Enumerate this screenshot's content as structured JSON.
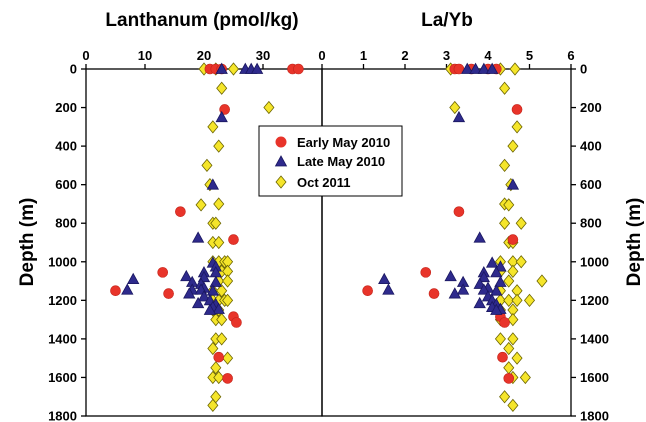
{
  "chart_data": [
    {
      "type": "scatter",
      "title": "Lanthanum (pmol/kg)",
      "xlim": [
        0,
        40
      ],
      "x_ticks": [
        "0",
        "10",
        "20",
        "30"
      ],
      "y_ticks": [
        "0",
        "200",
        "400",
        "600",
        "800",
        "1000",
        "1200",
        "1400",
        "1600",
        "1800"
      ],
      "ylim": [
        0,
        1800
      ],
      "ylabel": "Depth (m)",
      "series": [
        {
          "name": "Early May 2010",
          "marker": "circle",
          "color": "#e8342a",
          "points": [
            [
              21,
              0
            ],
            [
              22,
              0
            ],
            [
              23,
              0
            ],
            [
              35,
              0
            ],
            [
              36,
              0
            ],
            [
              23.5,
              210
            ],
            [
              16,
              740
            ],
            [
              25,
              885
            ],
            [
              13,
              1055
            ],
            [
              5,
              1150
            ],
            [
              14,
              1165
            ],
            [
              25,
              1285
            ],
            [
              25.5,
              1315
            ],
            [
              22.5,
              1495
            ],
            [
              24,
              1605
            ]
          ]
        },
        {
          "name": "Late May 2010",
          "marker": "triangle",
          "color": "#2e2a8c",
          "points": [
            [
              23,
              0
            ],
            [
              27,
              0
            ],
            [
              28,
              0
            ],
            [
              29,
              0
            ],
            [
              23,
              250
            ],
            [
              21.5,
              600
            ],
            [
              19,
              875
            ],
            [
              21.5,
              1005
            ],
            [
              22,
              1025
            ],
            [
              20,
              1055
            ],
            [
              22,
              1055
            ],
            [
              17,
              1075
            ],
            [
              20,
              1080
            ],
            [
              8,
              1090
            ],
            [
              18,
              1105
            ],
            [
              22,
              1105
            ],
            [
              19.5,
              1115
            ],
            [
              20,
              1135
            ],
            [
              7,
              1145
            ],
            [
              18,
              1145
            ],
            [
              19.5,
              1145
            ],
            [
              21.5,
              1150
            ],
            [
              17.5,
              1165
            ],
            [
              20,
              1180
            ],
            [
              21,
              1200
            ],
            [
              19,
              1215
            ],
            [
              22,
              1220
            ],
            [
              21.5,
              1235
            ],
            [
              22.5,
              1245
            ],
            [
              21,
              1250
            ]
          ]
        },
        {
          "name": "Oct 2011",
          "marker": "diamond",
          "color": "#f5e52a",
          "points": [
            [
              20,
              0
            ],
            [
              22,
              0
            ],
            [
              25,
              0
            ],
            [
              23,
              100
            ],
            [
              31,
              200
            ],
            [
              21.5,
              300
            ],
            [
              22.5,
              400
            ],
            [
              20.5,
              500
            ],
            [
              21,
              600
            ],
            [
              22.5,
              700
            ],
            [
              19.5,
              705
            ],
            [
              21.5,
              800
            ],
            [
              22,
              800
            ],
            [
              21.5,
              900
            ],
            [
              22.5,
              900
            ],
            [
              21.5,
              1000
            ],
            [
              22.5,
              1000
            ],
            [
              23.5,
              1000
            ],
            [
              24,
              1000
            ],
            [
              23,
              1050
            ],
            [
              24,
              1050
            ],
            [
              22.5,
              1100
            ],
            [
              24,
              1100
            ],
            [
              21.5,
              1150
            ],
            [
              23,
              1150
            ],
            [
              21.5,
              1200
            ],
            [
              22.5,
              1200
            ],
            [
              23.5,
              1200
            ],
            [
              24,
              1200
            ],
            [
              21.5,
              1250
            ],
            [
              22.5,
              1250
            ],
            [
              22,
              1300
            ],
            [
              23,
              1300
            ],
            [
              22,
              1400
            ],
            [
              23,
              1400
            ],
            [
              21.5,
              1450
            ],
            [
              24,
              1500
            ],
            [
              22,
              1550
            ],
            [
              21.5,
              1600
            ],
            [
              22.5,
              1600
            ],
            [
              22,
              1700
            ],
            [
              21.5,
              1745
            ]
          ]
        }
      ],
      "legend": {
        "placement": "center",
        "entries": [
          "Early May 2010",
          "Late May 2010",
          "Oct 2011"
        ]
      }
    },
    {
      "type": "scatter",
      "title": "La/Yb",
      "xlim": [
        0,
        6
      ],
      "x_ticks": [
        "0",
        "1",
        "2",
        "3",
        "4",
        "5",
        "6"
      ],
      "y_ticks": [
        "0",
        "200",
        "400",
        "600",
        "800",
        "1000",
        "1200",
        "1400",
        "1600",
        "1800"
      ],
      "ylim": [
        0,
        1800
      ],
      "ylabel": "Depth (m)",
      "series": [
        {
          "name": "Early May 2010",
          "marker": "circle",
          "color": "#e8342a",
          "points": [
            [
              3.2,
              0
            ],
            [
              3.3,
              0
            ],
            [
              3.6,
              0
            ],
            [
              4.0,
              0
            ],
            [
              4.2,
              0
            ],
            [
              4.7,
              210
            ],
            [
              3.3,
              740
            ],
            [
              4.6,
              885
            ],
            [
              2.5,
              1055
            ],
            [
              1.1,
              1150
            ],
            [
              2.7,
              1165
            ],
            [
              4.3,
              1285
            ],
            [
              4.4,
              1315
            ],
            [
              4.35,
              1495
            ],
            [
              4.5,
              1605
            ]
          ]
        },
        {
          "name": "Late May 2010",
          "marker": "triangle",
          "color": "#2e2a8c",
          "points": [
            [
              3.5,
              0
            ],
            [
              3.7,
              0
            ],
            [
              3.9,
              0
            ],
            [
              4.1,
              0
            ],
            [
              3.3,
              250
            ],
            [
              4.6,
              600
            ],
            [
              3.8,
              875
            ],
            [
              4.1,
              1005
            ],
            [
              4.3,
              1025
            ],
            [
              3.9,
              1055
            ],
            [
              4.2,
              1055
            ],
            [
              3.1,
              1075
            ],
            [
              3.9,
              1080
            ],
            [
              1.5,
              1090
            ],
            [
              3.4,
              1105
            ],
            [
              4.3,
              1105
            ],
            [
              3.8,
              1115
            ],
            [
              4.0,
              1135
            ],
            [
              1.6,
              1145
            ],
            [
              3.4,
              1145
            ],
            [
              3.9,
              1145
            ],
            [
              4.2,
              1150
            ],
            [
              3.2,
              1165
            ],
            [
              4.0,
              1180
            ],
            [
              4.1,
              1200
            ],
            [
              3.8,
              1215
            ],
            [
              4.2,
              1220
            ],
            [
              4.1,
              1235
            ],
            [
              4.3,
              1245
            ],
            [
              4.2,
              1250
            ]
          ]
        },
        {
          "name": "Oct 2011",
          "marker": "diamond",
          "color": "#f5e52a",
          "points": [
            [
              3.1,
              0
            ],
            [
              4.3,
              0
            ],
            [
              4.65,
              0
            ],
            [
              4.4,
              100
            ],
            [
              3.2,
              200
            ],
            [
              4.7,
              300
            ],
            [
              4.6,
              400
            ],
            [
              4.4,
              500
            ],
            [
              4.55,
              600
            ],
            [
              4.4,
              700
            ],
            [
              4.5,
              705
            ],
            [
              4.8,
              800
            ],
            [
              4.4,
              800
            ],
            [
              4.5,
              900
            ],
            [
              4.6,
              900
            ],
            [
              4.3,
              1000
            ],
            [
              4.6,
              1000
            ],
            [
              4.8,
              1000
            ],
            [
              4.3,
              1050
            ],
            [
              4.6,
              1050
            ],
            [
              4.5,
              1100
            ],
            [
              5.3,
              1100
            ],
            [
              4.3,
              1150
            ],
            [
              4.7,
              1150
            ],
            [
              4.3,
              1200
            ],
            [
              4.5,
              1200
            ],
            [
              4.7,
              1200
            ],
            [
              5.0,
              1200
            ],
            [
              4.3,
              1250
            ],
            [
              4.6,
              1250
            ],
            [
              4.3,
              1300
            ],
            [
              4.6,
              1300
            ],
            [
              4.3,
              1400
            ],
            [
              4.6,
              1400
            ],
            [
              4.5,
              1450
            ],
            [
              4.7,
              1500
            ],
            [
              4.5,
              1550
            ],
            [
              4.6,
              1600
            ],
            [
              4.9,
              1600
            ],
            [
              4.4,
              1700
            ],
            [
              4.6,
              1745
            ]
          ]
        }
      ]
    }
  ]
}
